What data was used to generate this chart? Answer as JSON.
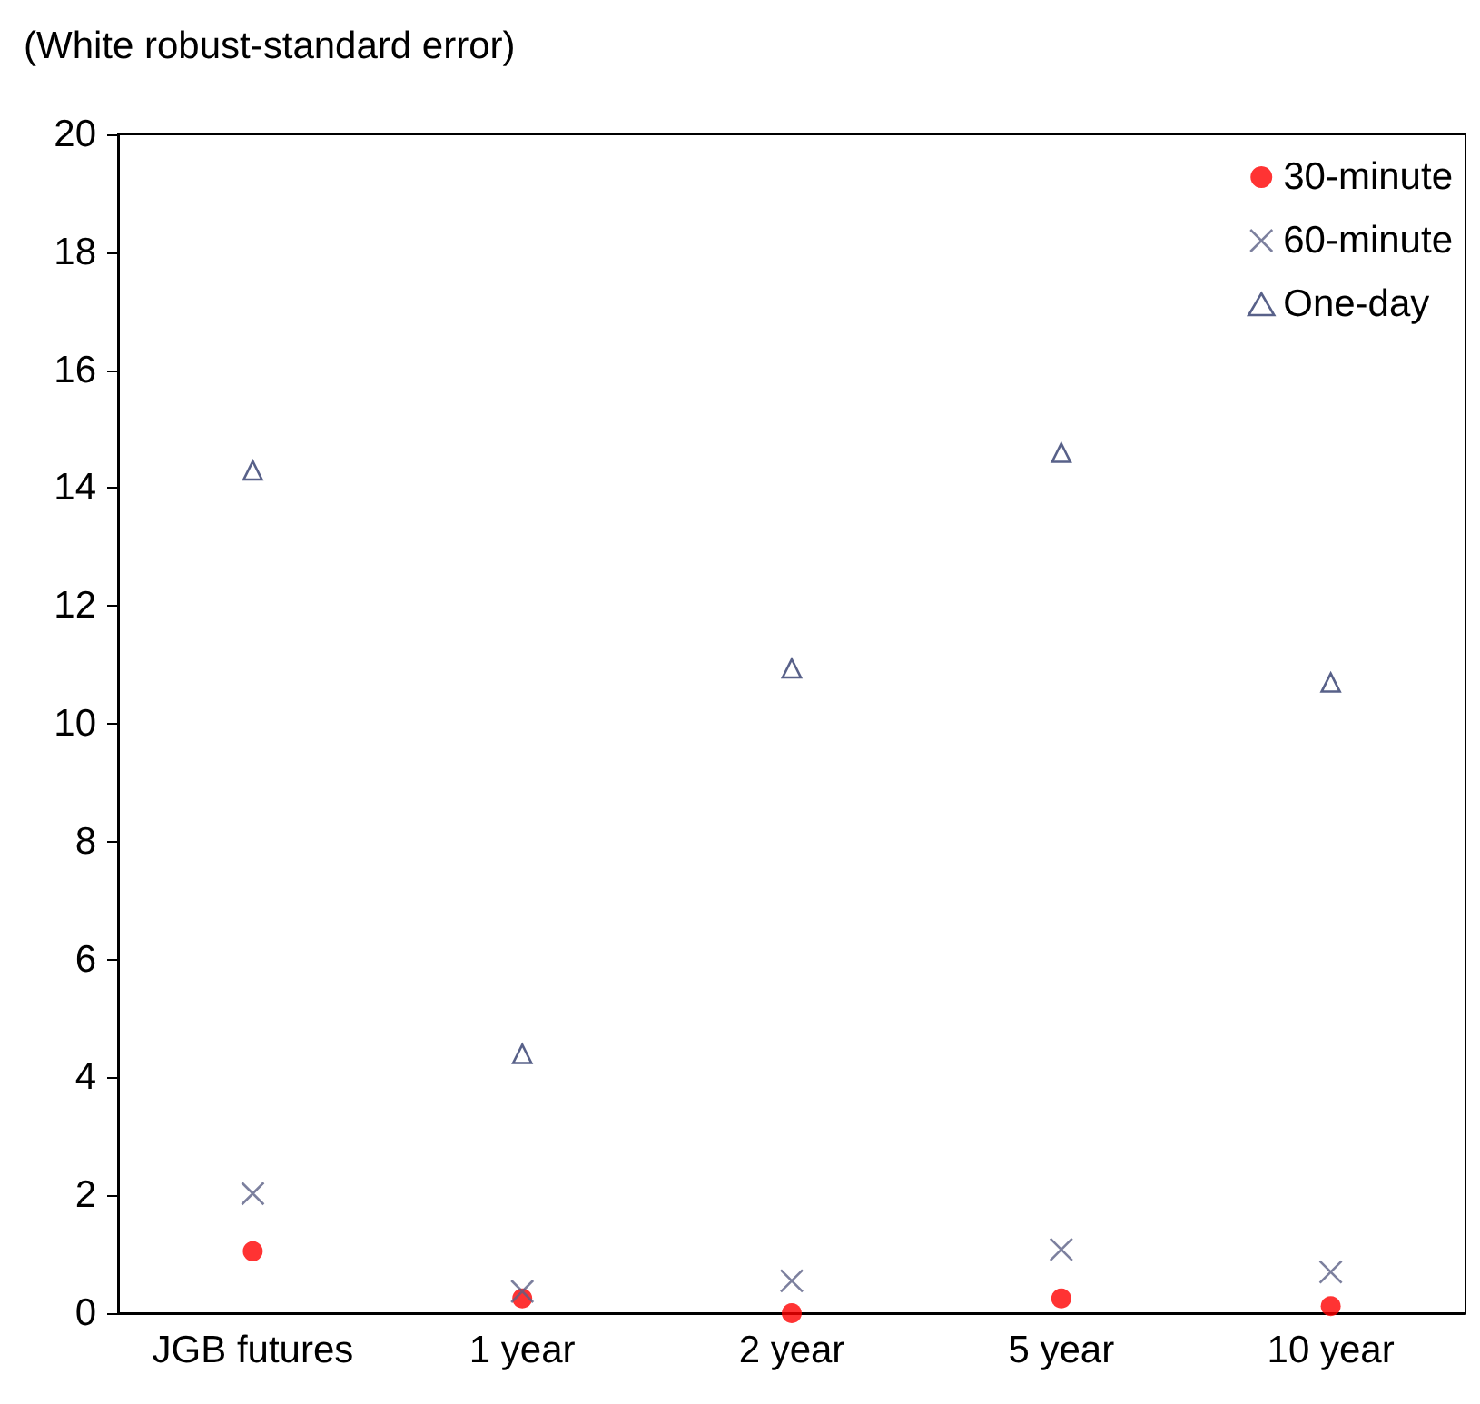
{
  "chart_data": {
    "type": "scatter",
    "ylabel": "(White robust-standard error)",
    "categories": [
      "JGB futures",
      "1 year",
      "2 year",
      "5 year",
      "10 year"
    ],
    "series": [
      {
        "name": "30-minute",
        "color": "#ff0000",
        "marker": "circle",
        "values": [
          1.05,
          0.25,
          0,
          0.25,
          0.12
        ]
      },
      {
        "name": "60-minute",
        "color": "#5b6086",
        "marker": "cross",
        "values": [
          2.03,
          0.37,
          0.55,
          1.08,
          0.7
        ]
      },
      {
        "name": "One-day",
        "color": "#2e3a6b",
        "marker": "triangle",
        "values": [
          14.3,
          4.4,
          10.94,
          14.6,
          10.7
        ]
      }
    ],
    "ylim": [
      0,
      20
    ],
    "yticks": [
      0,
      2,
      4,
      6,
      8,
      10,
      12,
      14,
      16,
      18,
      20
    ],
    "grid": false,
    "legend": "top right"
  }
}
